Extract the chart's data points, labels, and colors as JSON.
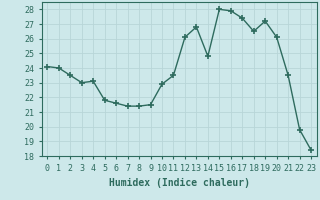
{
  "x": [
    0,
    1,
    2,
    3,
    4,
    5,
    6,
    7,
    8,
    9,
    10,
    11,
    12,
    13,
    14,
    15,
    16,
    17,
    18,
    19,
    20,
    21,
    22,
    23
  ],
  "y": [
    24.1,
    24.0,
    23.5,
    23.0,
    23.1,
    21.8,
    21.6,
    21.4,
    21.4,
    21.5,
    22.9,
    23.5,
    26.1,
    26.8,
    24.8,
    28.0,
    27.9,
    27.4,
    26.5,
    27.2,
    26.1,
    23.5,
    19.8,
    18.4
  ],
  "line_color": "#2e6b5e",
  "marker": "+",
  "marker_size": 4,
  "bg_color": "#cde8ea",
  "grid_color": "#b8d5d8",
  "xlabel": "Humidex (Indice chaleur)",
  "xlim": [
    -0.5,
    23.5
  ],
  "ylim": [
    18,
    28.5
  ],
  "yticks": [
    18,
    19,
    20,
    21,
    22,
    23,
    24,
    25,
    26,
    27,
    28
  ],
  "xticks": [
    0,
    1,
    2,
    3,
    4,
    5,
    6,
    7,
    8,
    9,
    10,
    11,
    12,
    13,
    14,
    15,
    16,
    17,
    18,
    19,
    20,
    21,
    22,
    23
  ],
  "xlabel_fontsize": 7,
  "tick_fontsize": 6,
  "line_width": 1.0,
  "marker_linewidth": 1.2
}
